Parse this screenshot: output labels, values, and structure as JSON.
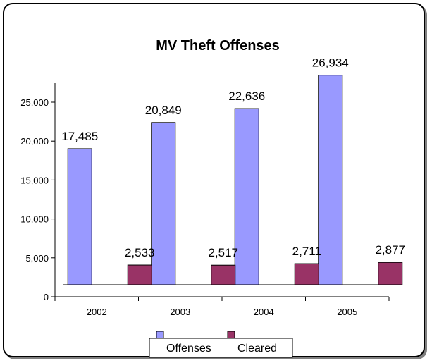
{
  "chart_data": {
    "type": "bar",
    "title": "MV Theft Offenses",
    "categories": [
      "2002",
      "2003",
      "2004",
      "2005"
    ],
    "series": [
      {
        "name": "Offenses",
        "values": [
          17485,
          20849,
          22636,
          26934
        ],
        "labels": [
          "17,485",
          "20,849",
          "22,636",
          "26,934"
        ],
        "color": "#9999ff"
      },
      {
        "name": "Cleared",
        "values": [
          2533,
          2517,
          2711,
          2877
        ],
        "labels": [
          "2,533",
          "2,517",
          "2,711",
          "2,877"
        ],
        "color": "#993366"
      }
    ],
    "yticks": [
      "0",
      "5,000",
      "10,000",
      "15,000",
      "20,000",
      "25,000"
    ],
    "ylim": [
      0,
      25000
    ],
    "legend_position": "bottom",
    "grid": false
  }
}
